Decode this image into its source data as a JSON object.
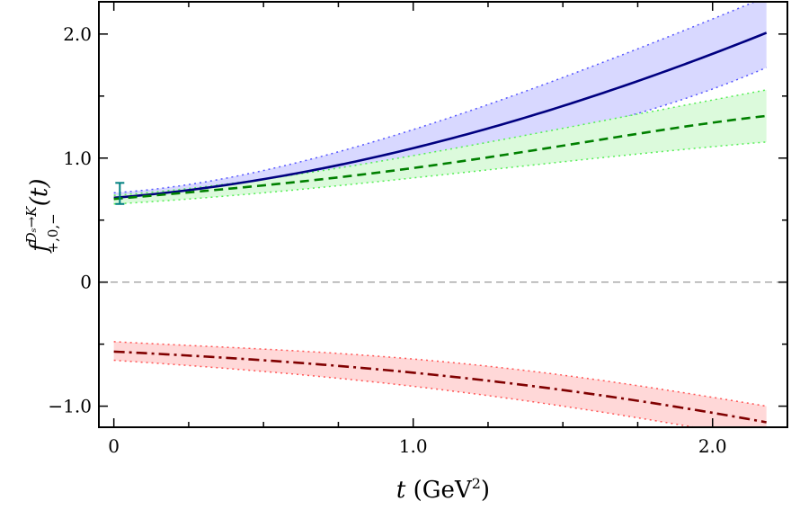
{
  "chart_data": {
    "type": "line",
    "title": "",
    "xlabel": "t (GeV²)",
    "xlabel_var": "t",
    "xlabel_unit": "(GeV",
    "xlabel_unit_sup": "2",
    "xlabel_unit_close": ")",
    "ylabel_main": "f",
    "ylabel_sup": "Dₛ→K",
    "ylabel_sub": "+,0,−",
    "ylabel_arg": "(t)",
    "xlim": [
      -0.05,
      2.25
    ],
    "ylim": [
      -1.17,
      2.26
    ],
    "xticks": [
      0,
      1.0,
      2.0
    ],
    "xtick_labels": [
      "0",
      "1.0",
      "2.0"
    ],
    "yticks": [
      -1.0,
      0,
      1.0,
      2.0
    ],
    "ytick_labels": [
      "−1.0",
      "0",
      "1.0",
      "2.0"
    ],
    "grid": false,
    "reference_line": {
      "y": 0,
      "style": "dashed",
      "color": "#999999"
    },
    "x": [
      0,
      0.5,
      1.0,
      1.5,
      2.18
    ],
    "series": [
      {
        "style": "solid",
        "color": "#000080",
        "band_color": "#d8d8ff",
        "band_edge_color": "#5555ff",
        "values": [
          0.68,
          0.83,
          1.08,
          1.42,
          2.01
        ],
        "upper": [
          0.72,
          0.9,
          1.23,
          1.65,
          2.3
        ],
        "lower": [
          0.64,
          0.76,
          0.95,
          1.2,
          1.73
        ]
      },
      {
        "style": "dashed",
        "color": "#008000",
        "band_color": "#dcfadc",
        "band_edge_color": "#55ee55",
        "values": [
          0.67,
          0.78,
          0.92,
          1.1,
          1.34
        ],
        "upper": [
          0.7,
          0.83,
          1.02,
          1.24,
          1.55
        ],
        "lower": [
          0.63,
          0.72,
          0.84,
          0.97,
          1.13
        ]
      },
      {
        "style": "dashdot",
        "color": "#800000",
        "band_color": "#ffd8d8",
        "band_edge_color": "#ff5555",
        "values": [
          -0.56,
          -0.63,
          -0.73,
          -0.87,
          -1.13
        ],
        "upper": [
          -0.48,
          -0.54,
          -0.62,
          -0.75,
          -1.0
        ],
        "lower": [
          -0.63,
          -0.72,
          -0.84,
          -1.0,
          -1.27
        ]
      }
    ],
    "errorbar_point": {
      "x": 0.02,
      "y": 0.715,
      "yerr_low": 0.63,
      "yerr_high": 0.8,
      "color": "#008080"
    }
  }
}
